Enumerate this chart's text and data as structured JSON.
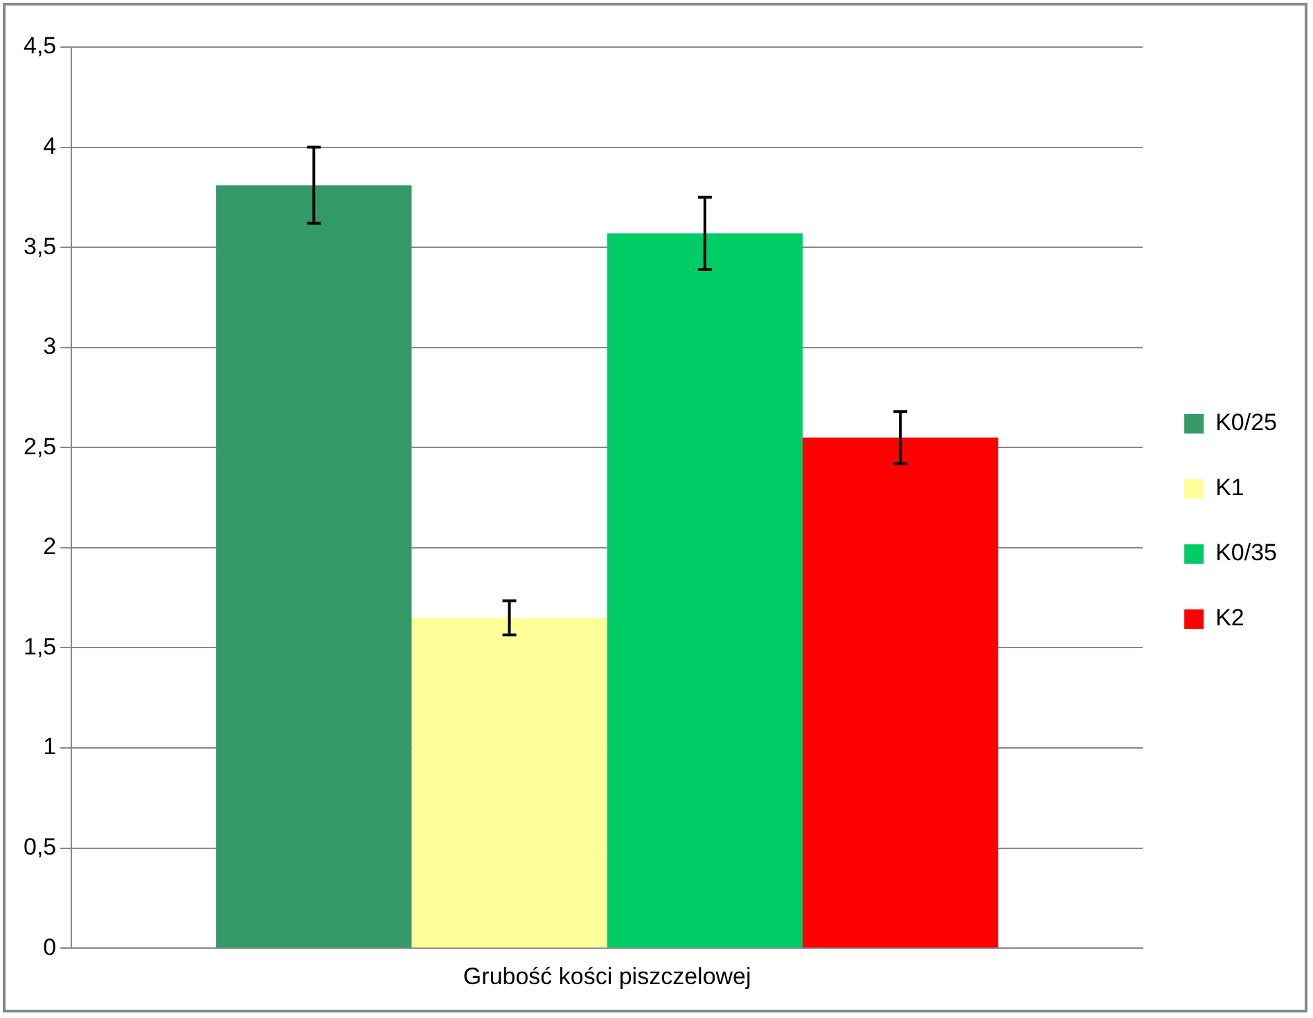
{
  "chart_data": {
    "type": "bar",
    "categories": [
      "Grubość kości piszczelowej"
    ],
    "series": [
      {
        "name": "K0/25",
        "color": "#339966",
        "values": [
          3.81
        ],
        "errors": [
          0.19
        ]
      },
      {
        "name": "K1",
        "color": "#ffff99",
        "values": [
          1.65
        ],
        "errors": [
          0.085
        ]
      },
      {
        "name": "K0/35",
        "color": "#00cc66",
        "values": [
          3.57
        ],
        "errors": [
          0.18
        ]
      },
      {
        "name": "K2",
        "color": "#ff0000",
        "values": [
          2.55
        ],
        "errors": [
          0.13
        ]
      }
    ],
    "ylim": [
      0,
      4.5
    ],
    "yticks": [
      {
        "value": 0,
        "label": "0"
      },
      {
        "value": 0.5,
        "label": "0,5"
      },
      {
        "value": 1,
        "label": "1"
      },
      {
        "value": 1.5,
        "label": "1,5"
      },
      {
        "value": 2,
        "label": "2"
      },
      {
        "value": 2.5,
        "label": "2,5"
      },
      {
        "value": 3,
        "label": "3"
      },
      {
        "value": 3.5,
        "label": "3,5"
      },
      {
        "value": 4,
        "label": "4"
      },
      {
        "value": 4.5,
        "label": "4,5"
      }
    ],
    "grid": "y",
    "legend": "right"
  }
}
